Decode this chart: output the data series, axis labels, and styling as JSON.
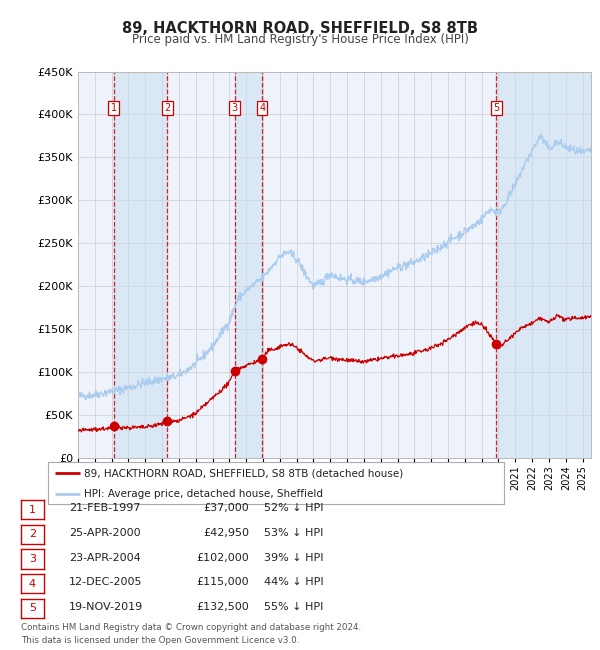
{
  "title": "89, HACKTHORN ROAD, SHEFFIELD, S8 8TB",
  "subtitle": "Price paid vs. HM Land Registry's House Price Index (HPI)",
  "ylim": [
    0,
    450000
  ],
  "yticks": [
    0,
    50000,
    100000,
    150000,
    200000,
    250000,
    300000,
    350000,
    400000,
    450000
  ],
  "hpi_color": "#aaccee",
  "price_color": "#cc0000",
  "bg_color": "#eef2fb",
  "grid_color": "#cccccc",
  "transactions": [
    {
      "num": 1,
      "date": "21-FEB-1997",
      "year": 1997.12,
      "price": 37000,
      "pct": "52% ↓ HPI"
    },
    {
      "num": 2,
      "date": "25-APR-2000",
      "year": 2000.32,
      "price": 42950,
      "pct": "53% ↓ HPI"
    },
    {
      "num": 3,
      "date": "23-APR-2004",
      "year": 2004.31,
      "price": 102000,
      "pct": "39% ↓ HPI"
    },
    {
      "num": 4,
      "date": "12-DEC-2005",
      "year": 2005.95,
      "price": 115000,
      "pct": "44% ↓ HPI"
    },
    {
      "num": 5,
      "date": "19-NOV-2019",
      "year": 2019.88,
      "price": 132500,
      "pct": "55% ↓ HPI"
    }
  ],
  "legend_label_price": "89, HACKTHORN ROAD, SHEFFIELD, S8 8TB (detached house)",
  "legend_label_hpi": "HPI: Average price, detached house, Sheffield",
  "footer": "Contains HM Land Registry data © Crown copyright and database right 2024.\nThis data is licensed under the Open Government Licence v3.0.",
  "xmin": 1995.0,
  "xmax": 2025.5
}
